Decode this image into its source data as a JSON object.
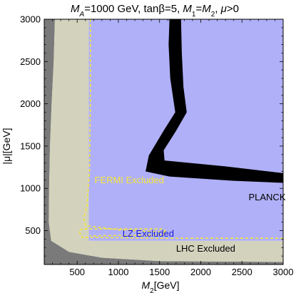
{
  "chart_data": {
    "type": "area",
    "title": {
      "parts": [
        {
          "text": "M",
          "italic": true
        },
        {
          "text": "A",
          "italic": true,
          "sub": true
        },
        {
          "text": "=1000 GeV, tan"
        },
        {
          "text": "β",
          "italic": false
        },
        {
          "text": "=5, "
        },
        {
          "text": "M",
          "italic": true
        },
        {
          "text": "1",
          "sub": true
        },
        {
          "text": "="
        },
        {
          "text": "M",
          "italic": true
        },
        {
          "text": "2",
          "sub": true
        },
        {
          "text": ", "
        },
        {
          "text": "μ",
          "italic": true
        },
        {
          "text": ">0"
        }
      ]
    },
    "xlabel": {
      "parts": [
        {
          "text": "M",
          "italic": true
        },
        {
          "text": "2",
          "sub": true
        },
        {
          "text": "[GeV]"
        }
      ]
    },
    "ylabel": "|μ|[GeV]",
    "xlim": [
      100,
      3000
    ],
    "ylim": [
      100,
      3000
    ],
    "xticks": [
      500,
      1000,
      1500,
      2000,
      2500,
      3000
    ],
    "yticks": [
      500,
      1000,
      1500,
      2000,
      2500,
      3000
    ],
    "regions": [
      {
        "name": "dark-excluded",
        "color": "#7a7a7a",
        "points": [
          [
            100,
            100
          ],
          [
            100,
            3000
          ],
          [
            230,
            3000
          ],
          [
            215,
            2500
          ],
          [
            190,
            2000
          ],
          [
            170,
            1500
          ],
          [
            160,
            1000
          ],
          [
            155,
            600
          ],
          [
            185,
            380
          ],
          [
            400,
            250
          ],
          [
            800,
            180
          ],
          [
            1500,
            140
          ],
          [
            3000,
            130
          ],
          [
            3000,
            100
          ]
        ]
      },
      {
        "name": "lhc-excluded",
        "label": "LHC Excluded",
        "color": "#d3d2bd",
        "label_pos": [
          1700,
          250
        ],
        "label_color": "#000000",
        "points": [
          [
            230,
            3000
          ],
          [
            215,
            2500
          ],
          [
            190,
            2000
          ],
          [
            170,
            1500
          ],
          [
            160,
            1000
          ],
          [
            155,
            600
          ],
          [
            185,
            380
          ],
          [
            400,
            250
          ],
          [
            800,
            180
          ],
          [
            1500,
            140
          ],
          [
            3000,
            130
          ],
          [
            3000,
            380
          ],
          [
            640,
            380
          ],
          [
            640,
            3000
          ]
        ]
      },
      {
        "name": "planck-allowed",
        "label": "PLANCK",
        "color": "#b0b0f8",
        "label_pos": [
          2580,
          860
        ],
        "label_color": "#000000",
        "points": [
          [
            640,
            3000
          ],
          [
            3000,
            3000
          ],
          [
            3000,
            380
          ],
          [
            640,
            380
          ]
        ]
      }
    ],
    "bands": [
      {
        "name": "relic-density-band",
        "color": "#000000",
        "points": [
          [
            1620,
            3000
          ],
          [
            1760,
            3000
          ],
          [
            1770,
            2600
          ],
          [
            1790,
            2200
          ],
          [
            1830,
            1900
          ],
          [
            1700,
            1680
          ],
          [
            1550,
            1450
          ],
          [
            1560,
            1330
          ],
          [
            2300,
            1260
          ],
          [
            3000,
            1180
          ],
          [
            3000,
            1065
          ],
          [
            2400,
            1090
          ],
          [
            1620,
            1140
          ],
          [
            1330,
            1200
          ],
          [
            1370,
            1390
          ],
          [
            1560,
            1700
          ],
          [
            1690,
            1900
          ],
          [
            1630,
            2300
          ],
          [
            1610,
            2700
          ]
        ]
      }
    ],
    "dashed_curves": [
      {
        "name": "fermi-excluded",
        "label": "FERMI Excluded",
        "color": "#f5e63c",
        "label_pos": [
          710,
          1060
        ],
        "points": [
          [
            660,
            3000
          ],
          [
            660,
            2000
          ],
          [
            650,
            1200
          ],
          [
            620,
            800
          ],
          [
            580,
            650
          ],
          [
            600,
            560
          ],
          [
            1000,
            510
          ],
          [
            1600,
            480
          ]
        ]
      },
      {
        "name": "lz-excluded",
        "label": "LZ Excluded",
        "color": "#f5e63c",
        "label_pos": [
          1050,
          430
        ],
        "label_color": "#1a1ad0",
        "points": [
          [
            3000,
            410
          ],
          [
            1600,
            410
          ],
          [
            560,
            420
          ],
          [
            520,
            500
          ],
          [
            560,
            520
          ],
          [
            1550,
            520
          ],
          [
            1580,
            480
          ],
          [
            1560,
            450
          ],
          [
            650,
            440
          ]
        ]
      }
    ]
  }
}
